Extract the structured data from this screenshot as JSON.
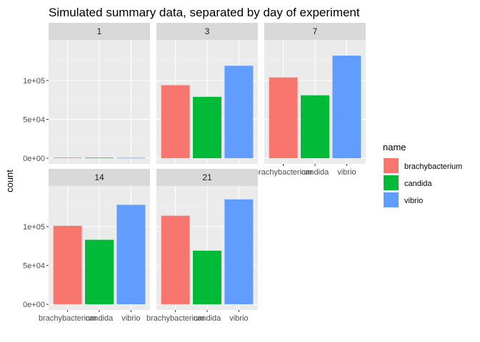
{
  "chart_data": {
    "type": "bar",
    "title": "Simulated summary data, separated by day of experiment",
    "xlabel": "",
    "ylabel": "count",
    "ylim": [
      0,
      145000
    ],
    "y_ticks": [
      0,
      50000,
      100000
    ],
    "y_tick_labels": [
      "0e+00",
      "5e+04",
      "1e+05"
    ],
    "categories": [
      "brachybacterium",
      "candida",
      "vibrio"
    ],
    "colors": {
      "brachybacterium": "#F8766D",
      "candida": "#00BA38",
      "vibrio": "#619CFF"
    },
    "legend": {
      "title": "name",
      "position": "right",
      "entries": [
        "brachybacterium",
        "candida",
        "vibrio"
      ]
    },
    "grid": true,
    "facets": [
      {
        "label": "1",
        "values": [
          800,
          700,
          600
        ]
      },
      {
        "label": "3",
        "values": [
          94000,
          79000,
          119000
        ]
      },
      {
        "label": "7",
        "values": [
          104000,
          81000,
          132000
        ]
      },
      {
        "label": "14",
        "values": [
          101000,
          83000,
          128000
        ]
      },
      {
        "label": "21",
        "values": [
          114000,
          69000,
          135000
        ]
      }
    ]
  }
}
